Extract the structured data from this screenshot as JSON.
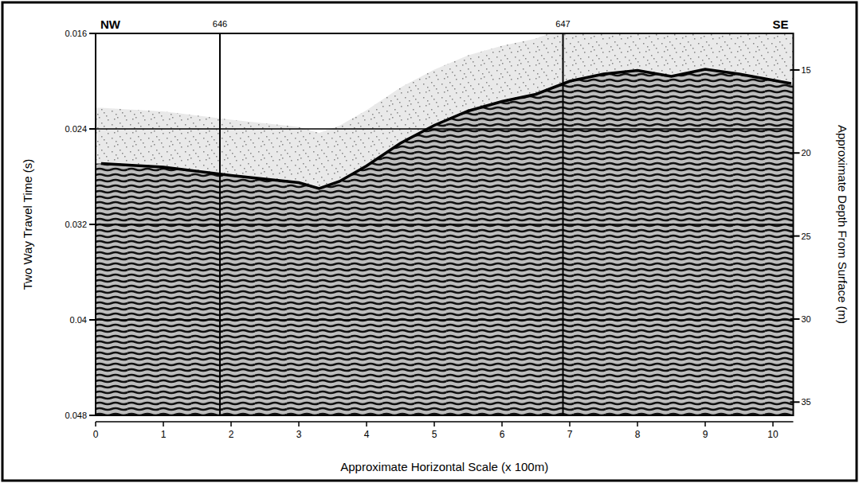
{
  "chart_data": {
    "type": "seismic",
    "x_label": "Approximate Horizontal Scale (x 100m)",
    "y_label": "Two Way Travel Time (s)",
    "y2_label": "Approximate Depth From Surface (m)",
    "ends": {
      "left": "NW",
      "right": "SE"
    },
    "xlim": [
      0,
      10.3
    ],
    "xticks": [
      0,
      1,
      2,
      3,
      4,
      5,
      6,
      7,
      8,
      9,
      10
    ],
    "ylim": [
      0.048,
      0.016
    ],
    "yticks": [
      0.016,
      0.024,
      0.032,
      0.04,
      0.048
    ],
    "y2lim": [
      35.8,
      12.8
    ],
    "y2ticks": [
      15,
      20,
      25,
      30,
      35
    ],
    "grid": true,
    "annotations": [
      {
        "x": 1.835,
        "label": "646"
      },
      {
        "x": 6.9,
        "label": "647"
      }
    ],
    "series": [
      {
        "type": "line",
        "color": "#000000",
        "x": [
          0.08,
          1,
          2,
          3,
          3.3,
          3.6,
          4,
          4.5,
          5,
          5.5,
          6,
          6.5,
          7,
          7.5,
          8,
          8.5,
          9,
          9.5,
          10.27
        ],
        "values": [
          0.0269,
          0.0272,
          0.0279,
          0.0285,
          0.029,
          0.0284,
          0.0271,
          0.0252,
          0.0237,
          0.0225,
          0.0217,
          0.0211,
          0.02,
          0.0194,
          0.0191,
          0.0196,
          0.019,
          0.0194,
          0.0202
        ]
      }
    ]
  }
}
